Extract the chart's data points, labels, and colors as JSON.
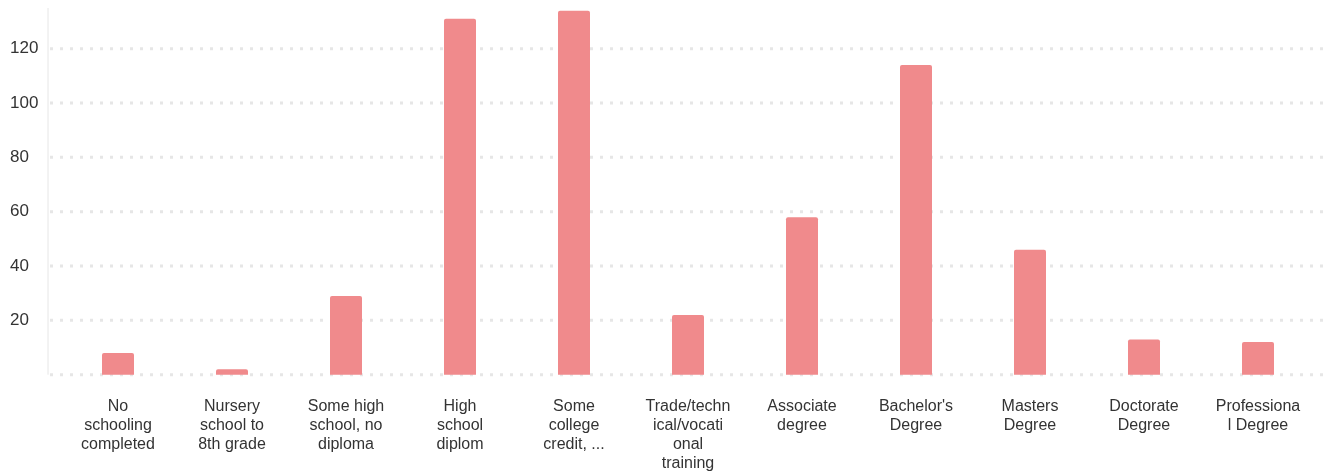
{
  "chart_data": {
    "type": "bar",
    "categories": [
      "No schooling completed",
      "Nursery school to 8th grade",
      "Some high school, no diploma",
      "High school diplom",
      "Some college credit, ...",
      "Trade/technical/vocational training",
      "Associate degree",
      "Bachelor's Degree",
      "Masters Degree",
      "Doctorate Degree",
      "Professional Degree"
    ],
    "values": [
      8,
      2,
      29,
      131,
      134,
      22,
      58,
      114,
      46,
      13,
      12
    ],
    "color": "#f08a8c",
    "ylim": [
      0,
      135
    ],
    "yticks": [
      {
        "value": 0,
        "label": null
      },
      20,
      40,
      60,
      80,
      100,
      120
    ],
    "grid": "y"
  }
}
